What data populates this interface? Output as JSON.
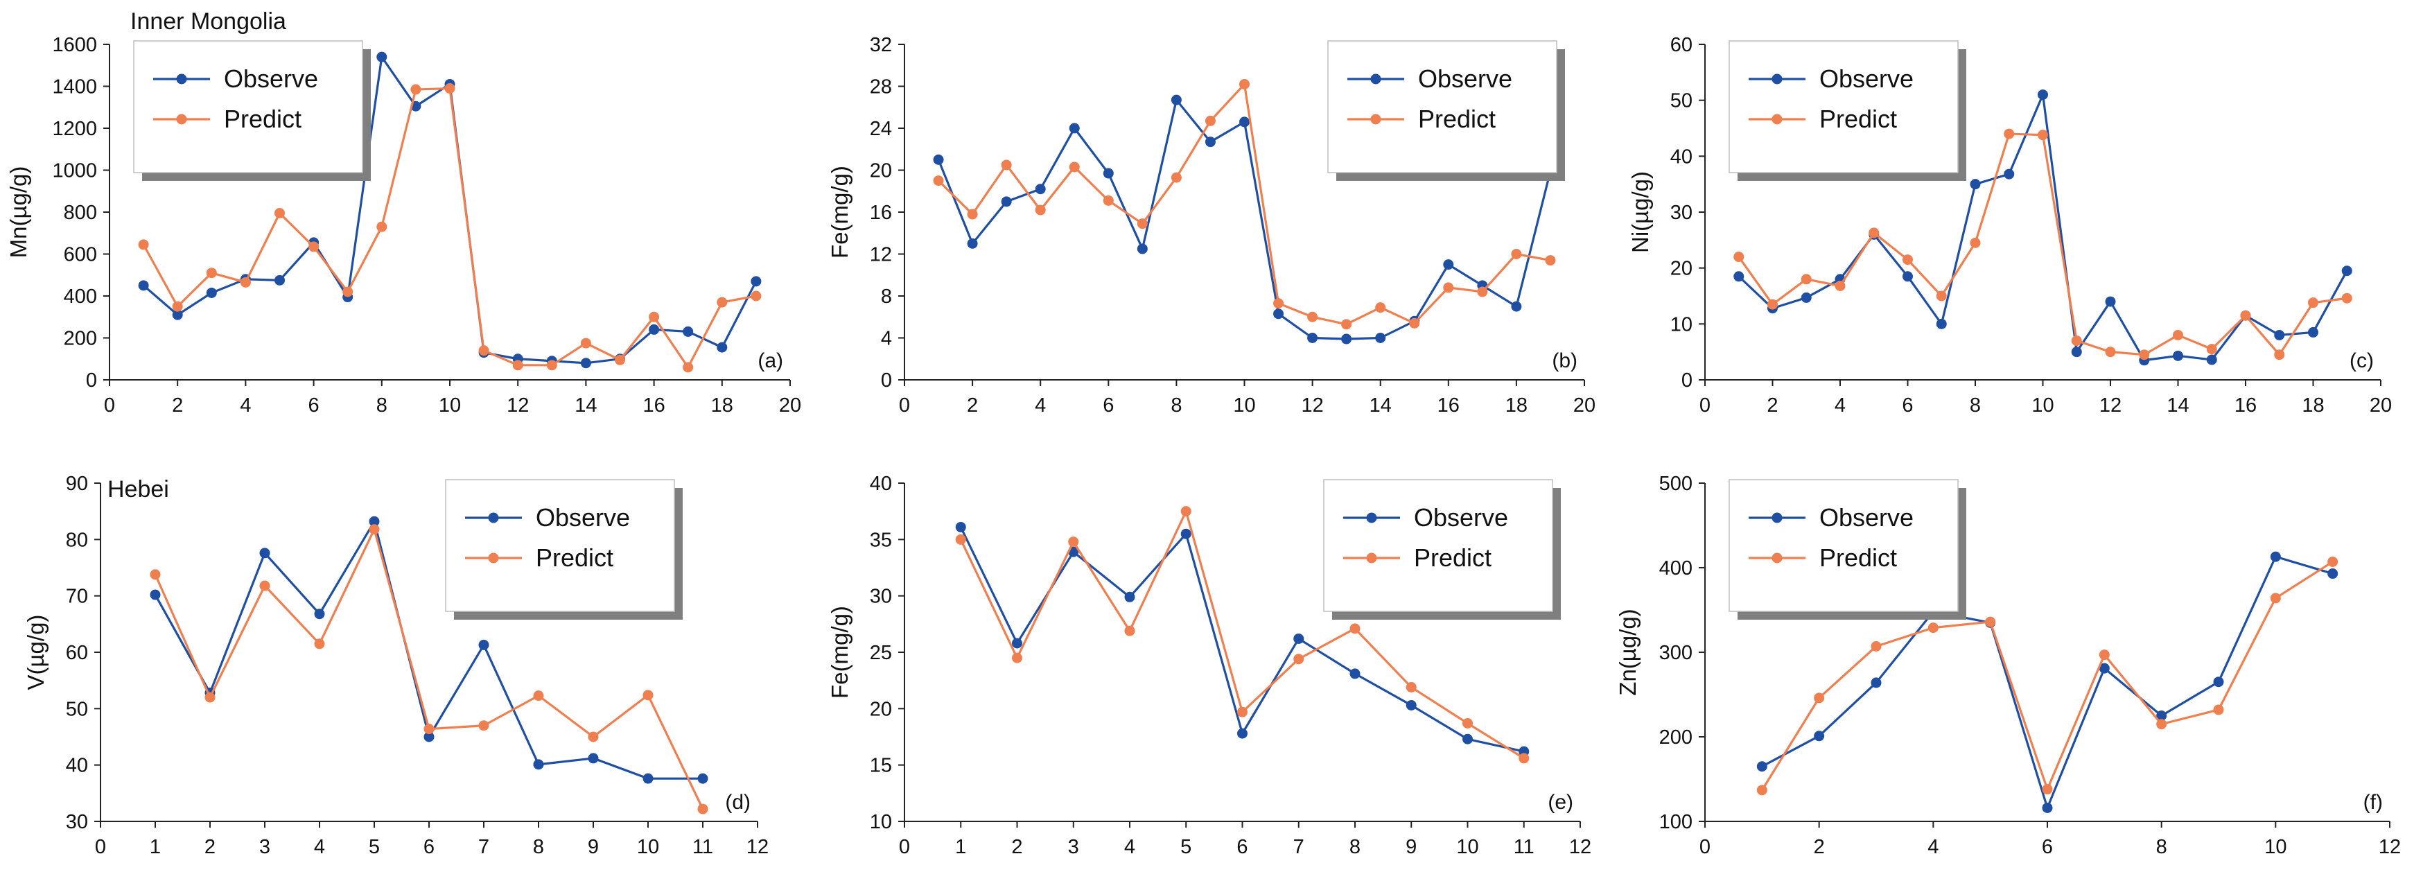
{
  "colors": {
    "observe": "#1f4fa3",
    "predict": "#f07f4f",
    "axis": "#222222"
  },
  "chart_data": [
    {
      "id": "a",
      "type": "line",
      "panel_label": "(a)",
      "region_label": "Inner Mongolia",
      "ylabel": "Mn(µg/g)",
      "xlim": [
        0,
        20
      ],
      "ylim": [
        0,
        1600
      ],
      "xticks": [
        0,
        2,
        4,
        6,
        8,
        10,
        12,
        14,
        16,
        18,
        20
      ],
      "yticks": [
        0,
        200,
        400,
        600,
        800,
        1000,
        1200,
        1400,
        1600
      ],
      "legend": "top-left",
      "x": [
        1,
        2,
        3,
        4,
        5,
        6,
        7,
        8,
        9,
        10,
        11,
        12,
        13,
        14,
        15,
        16,
        17,
        18,
        19
      ],
      "series": [
        {
          "name": "Observe",
          "values": [
            450,
            310,
            415,
            480,
            475,
            655,
            395,
            1540,
            1305,
            1410,
            130,
            100,
            90,
            80,
            100,
            240,
            230,
            155,
            470
          ]
        },
        {
          "name": "Predict",
          "values": [
            645,
            350,
            510,
            465,
            795,
            635,
            420,
            730,
            1385,
            1390,
            140,
            70,
            70,
            175,
            95,
            300,
            60,
            370,
            400
          ]
        }
      ]
    },
    {
      "id": "b",
      "type": "line",
      "panel_label": "(b)",
      "region_label": "",
      "ylabel": "Fe(mg/g)",
      "xlim": [
        0,
        20
      ],
      "ylim": [
        0,
        32
      ],
      "xticks": [
        0,
        2,
        4,
        6,
        8,
        10,
        12,
        14,
        16,
        18,
        20
      ],
      "yticks": [
        0,
        4,
        8,
        12,
        16,
        20,
        24,
        28,
        32
      ],
      "legend": "top-right",
      "x": [
        1,
        2,
        3,
        4,
        5,
        6,
        7,
        8,
        9,
        10,
        11,
        12,
        13,
        14,
        15,
        16,
        17,
        18,
        19
      ],
      "series": [
        {
          "name": "Observe",
          "values": [
            21,
            13,
            17,
            18.2,
            24,
            19.7,
            12.5,
            26.7,
            22.7,
            24.6,
            6.3,
            4,
            3.9,
            4,
            5.6,
            11,
            9,
            7,
            19.9
          ]
        },
        {
          "name": "Predict",
          "values": [
            19,
            15.8,
            20.5,
            16.2,
            20.3,
            17.1,
            14.9,
            19.3,
            24.7,
            28.2,
            7.3,
            6,
            5.3,
            6.9,
            5.4,
            8.8,
            8.4,
            12,
            11.4
          ]
        }
      ]
    },
    {
      "id": "c",
      "type": "line",
      "panel_label": "(c)",
      "region_label": "",
      "ylabel": "Ni(µg/g)",
      "xlim": [
        0,
        20
      ],
      "ylim": [
        0,
        60
      ],
      "xticks": [
        0,
        2,
        4,
        6,
        8,
        10,
        12,
        14,
        16,
        18,
        20
      ],
      "yticks": [
        0,
        10,
        20,
        30,
        40,
        50,
        60
      ],
      "legend": "top-left",
      "x": [
        1,
        2,
        3,
        4,
        5,
        6,
        7,
        8,
        9,
        10,
        11,
        12,
        13,
        14,
        15,
        16,
        17,
        18,
        19
      ],
      "series": [
        {
          "name": "Observe",
          "values": [
            18.5,
            12.8,
            14.7,
            18,
            26,
            18.5,
            10,
            35,
            36.8,
            51,
            5,
            14,
            3.5,
            4.3,
            3.6,
            11.5,
            8,
            8.5,
            19.5
          ]
        },
        {
          "name": "Predict",
          "values": [
            22,
            13.5,
            18,
            16.8,
            26.3,
            21.5,
            15,
            24.5,
            44,
            43.8,
            7,
            5,
            4.5,
            8,
            5.5,
            11.5,
            4.5,
            13.8,
            14.6
          ]
        }
      ]
    },
    {
      "id": "d",
      "type": "line",
      "panel_label": "(d)",
      "region_label": "Hebei",
      "ylabel": "V(µg/g)",
      "xlim": [
        0,
        12
      ],
      "ylim": [
        30,
        90
      ],
      "xticks": [
        0,
        1,
        2,
        3,
        4,
        5,
        6,
        7,
        8,
        9,
        10,
        11,
        12
      ],
      "yticks": [
        30,
        40,
        50,
        60,
        70,
        80,
        90
      ],
      "legend": "top-right",
      "x": [
        1,
        2,
        3,
        4,
        5,
        6,
        7,
        8,
        9,
        10,
        11
      ],
      "series": [
        {
          "name": "Observe",
          "values": [
            70.2,
            52.8,
            77.6,
            66.8,
            83.2,
            45,
            61.3,
            40.1,
            41.2,
            37.6,
            37.6
          ]
        },
        {
          "name": "Predict",
          "values": [
            73.8,
            52,
            71.8,
            61.5,
            81.8,
            46.4,
            47,
            52.3,
            45,
            52.4,
            32.2
          ]
        }
      ]
    },
    {
      "id": "e",
      "type": "line",
      "panel_label": "(e)",
      "region_label": "",
      "ylabel": "Fe(mg/g)",
      "xlim": [
        0,
        12
      ],
      "ylim": [
        10,
        40
      ],
      "xticks": [
        0,
        1,
        2,
        3,
        4,
        5,
        6,
        7,
        8,
        9,
        10,
        11,
        12
      ],
      "yticks": [
        10,
        15,
        20,
        25,
        30,
        35,
        40
      ],
      "legend": "top-right",
      "x": [
        1,
        2,
        3,
        4,
        5,
        6,
        7,
        8,
        9,
        10,
        11
      ],
      "series": [
        {
          "name": "Observe",
          "values": [
            36.1,
            25.8,
            33.9,
            29.9,
            35.5,
            17.8,
            26.2,
            23.1,
            20.3,
            17.3,
            16.2
          ]
        },
        {
          "name": "Predict",
          "values": [
            35,
            24.5,
            34.8,
            26.9,
            37.5,
            19.7,
            24.4,
            27.1,
            21.9,
            18.7,
            15.6
          ]
        }
      ]
    },
    {
      "id": "f",
      "type": "line",
      "panel_label": "(f)",
      "region_label": "",
      "ylabel": "Zn(µg/g)",
      "xlim": [
        0,
        12
      ],
      "ylim": [
        100,
        500
      ],
      "xticks": [
        0,
        2,
        4,
        6,
        8,
        10,
        12
      ],
      "yticks": [
        100,
        200,
        300,
        400,
        500
      ],
      "legend": "top-left",
      "x": [
        1,
        2,
        3,
        4,
        5,
        6,
        7,
        8,
        9,
        10,
        11
      ],
      "series": [
        {
          "name": "Observe",
          "values": [
            165,
            201,
            264,
            348,
            335,
            116,
            281,
            225,
            265,
            413,
            393
          ]
        },
        {
          "name": "Predict",
          "values": [
            137,
            246,
            307,
            329,
            336,
            138,
            297,
            215,
            232,
            364,
            407
          ]
        }
      ]
    }
  ]
}
